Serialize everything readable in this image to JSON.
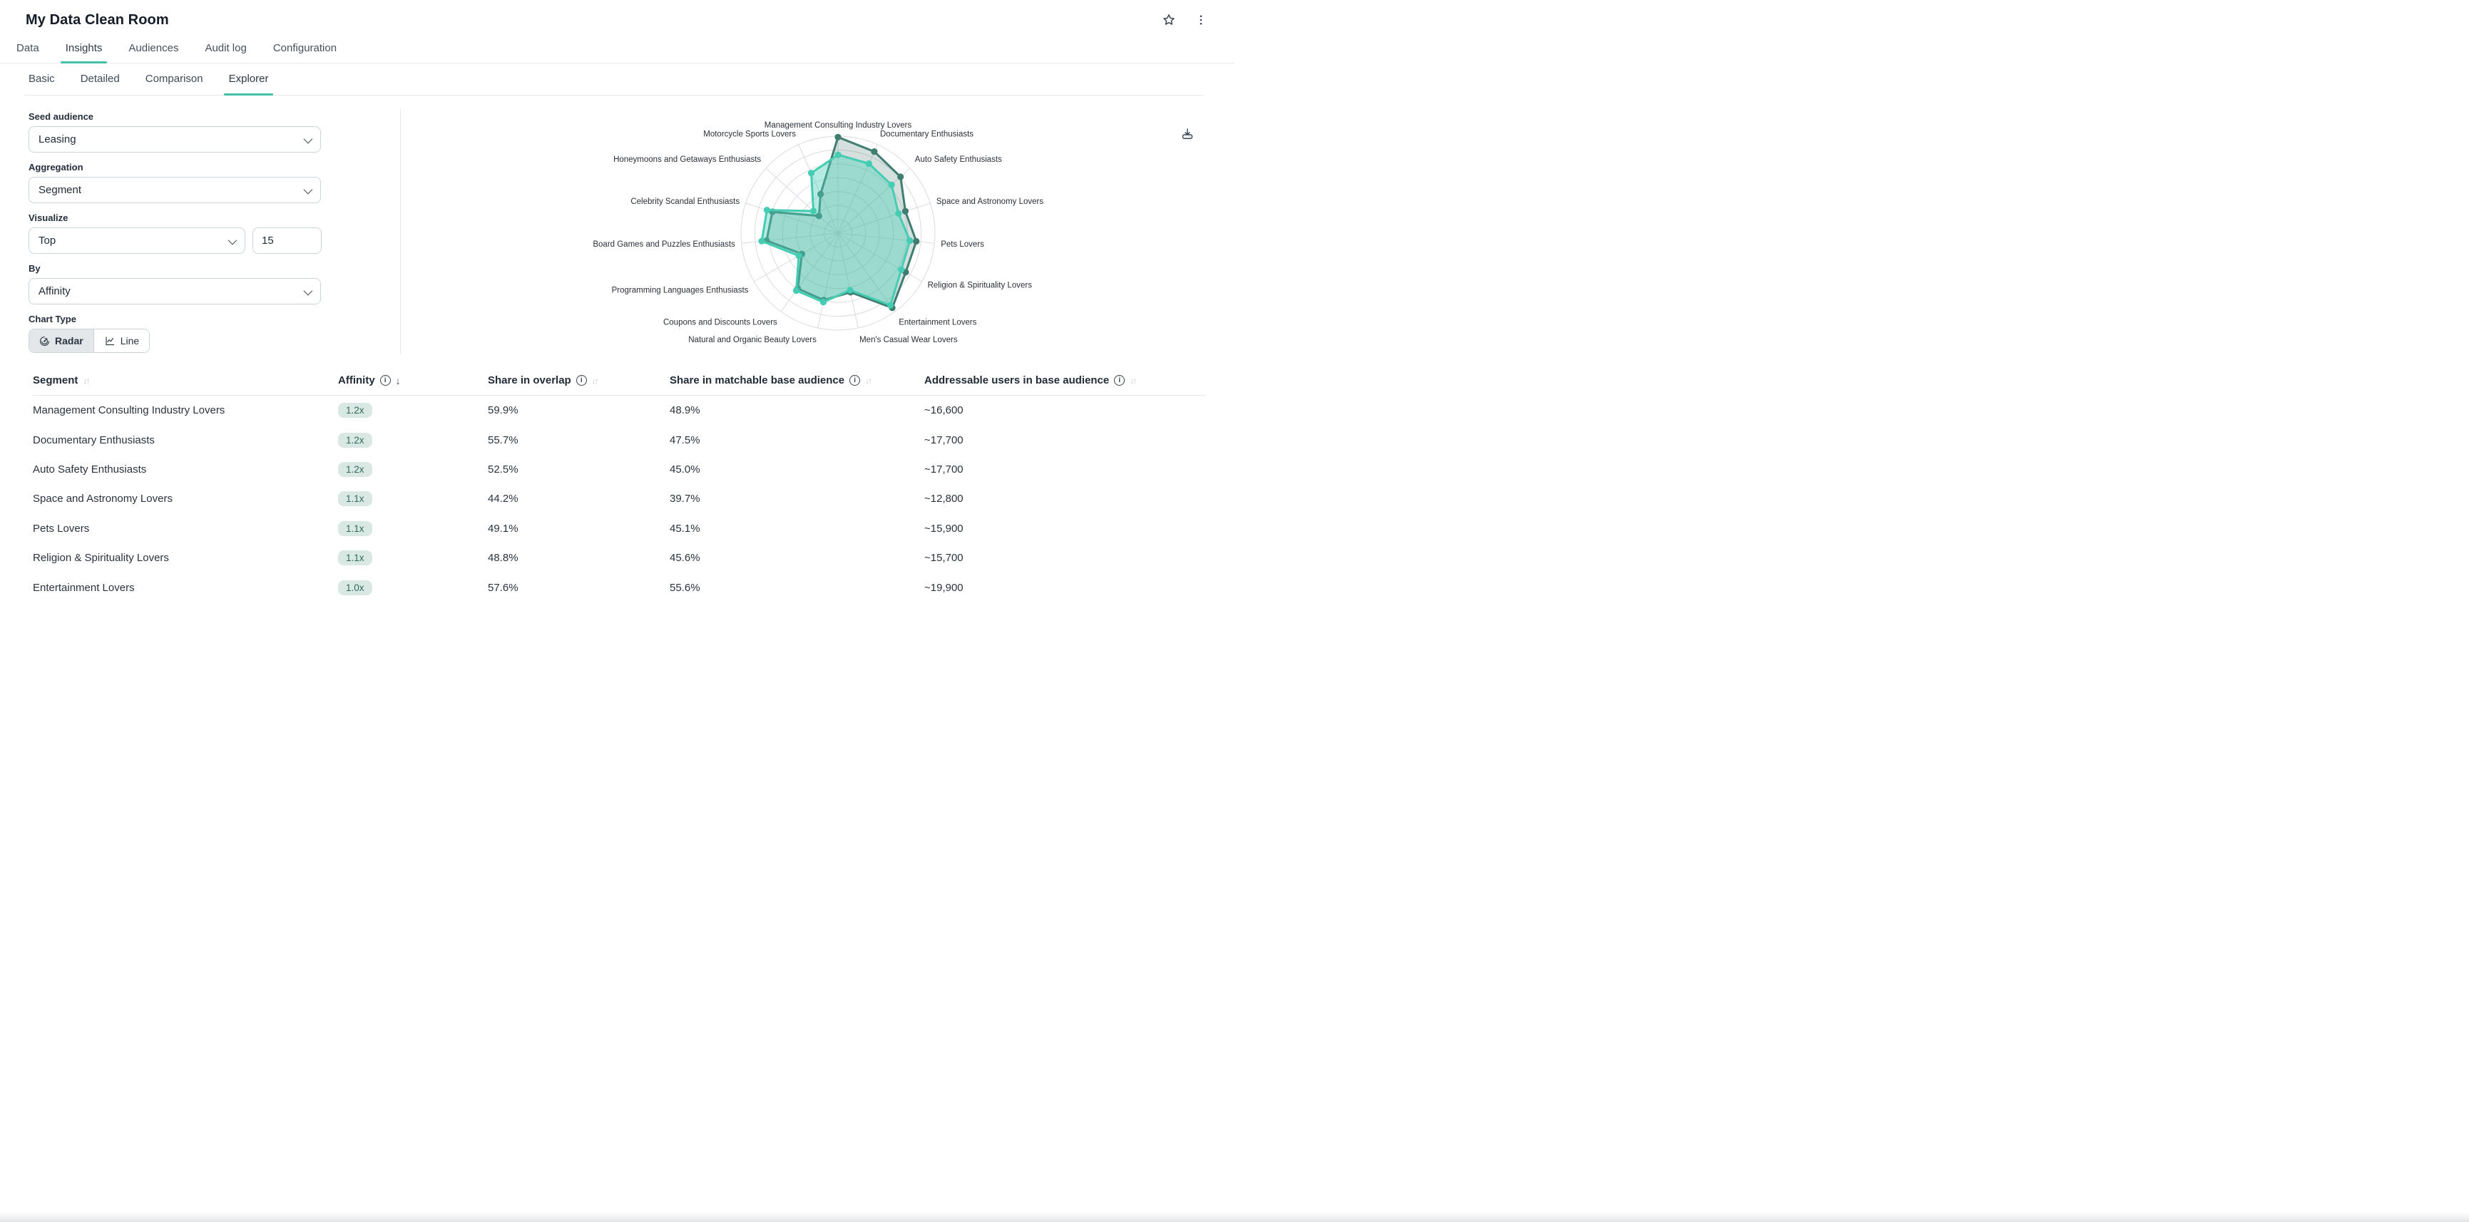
{
  "header": {
    "title": "My Data Clean Room"
  },
  "colors": {
    "accent": "#43c0a7",
    "radar_dark_stroke": "#3e7d6f",
    "radar_dark_fill": "rgba(64,115,104,0.22)",
    "radar_light_stroke": "#45cdb3",
    "radar_light_fill": "rgba(78,208,186,0.42)",
    "grid": "#d9dcdf",
    "badge_bg": "#d9e8e2",
    "badge_text": "#2d6b5d"
  },
  "main_tabs": {
    "items": [
      {
        "label": "Data",
        "active": false
      },
      {
        "label": "Insights",
        "active": true
      },
      {
        "label": "Audiences",
        "active": false
      },
      {
        "label": "Audit log",
        "active": false
      },
      {
        "label": "Configuration",
        "active": false
      }
    ]
  },
  "sub_tabs": {
    "items": [
      {
        "label": "Basic",
        "active": false
      },
      {
        "label": "Detailed",
        "active": false
      },
      {
        "label": "Comparison",
        "active": false
      },
      {
        "label": "Explorer",
        "active": true
      }
    ]
  },
  "controls": {
    "seed_audience": {
      "label": "Seed audience",
      "value": "Leasing"
    },
    "aggregation": {
      "label": "Aggregation",
      "value": "Segment"
    },
    "visualize": {
      "label": "Visualize",
      "value": "Top",
      "count": "15"
    },
    "by": {
      "label": "By",
      "value": "Affinity"
    },
    "chart_type": {
      "label": "Chart Type",
      "options": [
        "Radar",
        "Line"
      ],
      "selected": "Radar"
    }
  },
  "chart_data": {
    "type": "radar",
    "categories": [
      "Management Consulting Industry Lovers",
      "Documentary Enthusiasts",
      "Auto Safety Enthusiasts",
      "Space and Astronomy Lovers",
      "Pets Lovers",
      "Religion & Spirituality Lovers",
      "Entertainment Lovers",
      "Men's Casual Wear Lovers",
      "Natural and Organic Beauty Lovers",
      "Coupons and Discounts Lovers",
      "Programming Languages Enthusiasts",
      "Board Games and Puzzles Enthusiasts",
      "Celebrity Scandal Enthusiasts",
      "Honeymoons and Getaways Enthusiasts",
      "Motorcycle Sports Lovers"
    ],
    "series": [
      {
        "name": "Share in overlap",
        "values": [
          59.9,
          55.7,
          52.5,
          44.2,
          49.1,
          48.8,
          57.6,
          37.7,
          42.7,
          42.7,
          26.0,
          44.8,
          43.0,
          16.0,
          26.7
        ]
      },
      {
        "name": "Share in matchable base audience",
        "values": [
          48.9,
          47.5,
          45.0,
          39.7,
          45.1,
          45.6,
          55.6,
          36.4,
          44.0,
          44.3,
          28.2,
          47.8,
          46.6,
          20.6,
          41.0
        ]
      }
    ],
    "rmax": 60.5,
    "rings": 7,
    "grid": true,
    "legend_position": "none",
    "title": ""
  },
  "table": {
    "columns": [
      {
        "label": "Segment",
        "info": false,
        "sort": "both"
      },
      {
        "label": "Affinity",
        "info": true,
        "sort": "desc"
      },
      {
        "label": "Share in overlap",
        "info": true,
        "sort": "both"
      },
      {
        "label": "Share in matchable base audience",
        "info": true,
        "sort": "both"
      },
      {
        "label": "Addressable users in base audience",
        "info": true,
        "sort": "both"
      }
    ],
    "rows": [
      {
        "segment": "Management Consulting Industry Lovers",
        "affinity": "1.2x",
        "share_overlap": "59.9%",
        "share_matchable": "48.9%",
        "addressable": "~16,600"
      },
      {
        "segment": "Documentary Enthusiasts",
        "affinity": "1.2x",
        "share_overlap": "55.7%",
        "share_matchable": "47.5%",
        "addressable": "~17,700"
      },
      {
        "segment": "Auto Safety Enthusiasts",
        "affinity": "1.2x",
        "share_overlap": "52.5%",
        "share_matchable": "45.0%",
        "addressable": "~17,700"
      },
      {
        "segment": "Space and Astronomy Lovers",
        "affinity": "1.1x",
        "share_overlap": "44.2%",
        "share_matchable": "39.7%",
        "addressable": "~12,800"
      },
      {
        "segment": "Pets Lovers",
        "affinity": "1.1x",
        "share_overlap": "49.1%",
        "share_matchable": "45.1%",
        "addressable": "~15,900"
      },
      {
        "segment": "Religion & Spirituality Lovers",
        "affinity": "1.1x",
        "share_overlap": "48.8%",
        "share_matchable": "45.6%",
        "addressable": "~15,700"
      },
      {
        "segment": "Entertainment Lovers",
        "affinity": "1.0x",
        "share_overlap": "57.6%",
        "share_matchable": "55.6%",
        "addressable": "~19,900"
      }
    ]
  }
}
